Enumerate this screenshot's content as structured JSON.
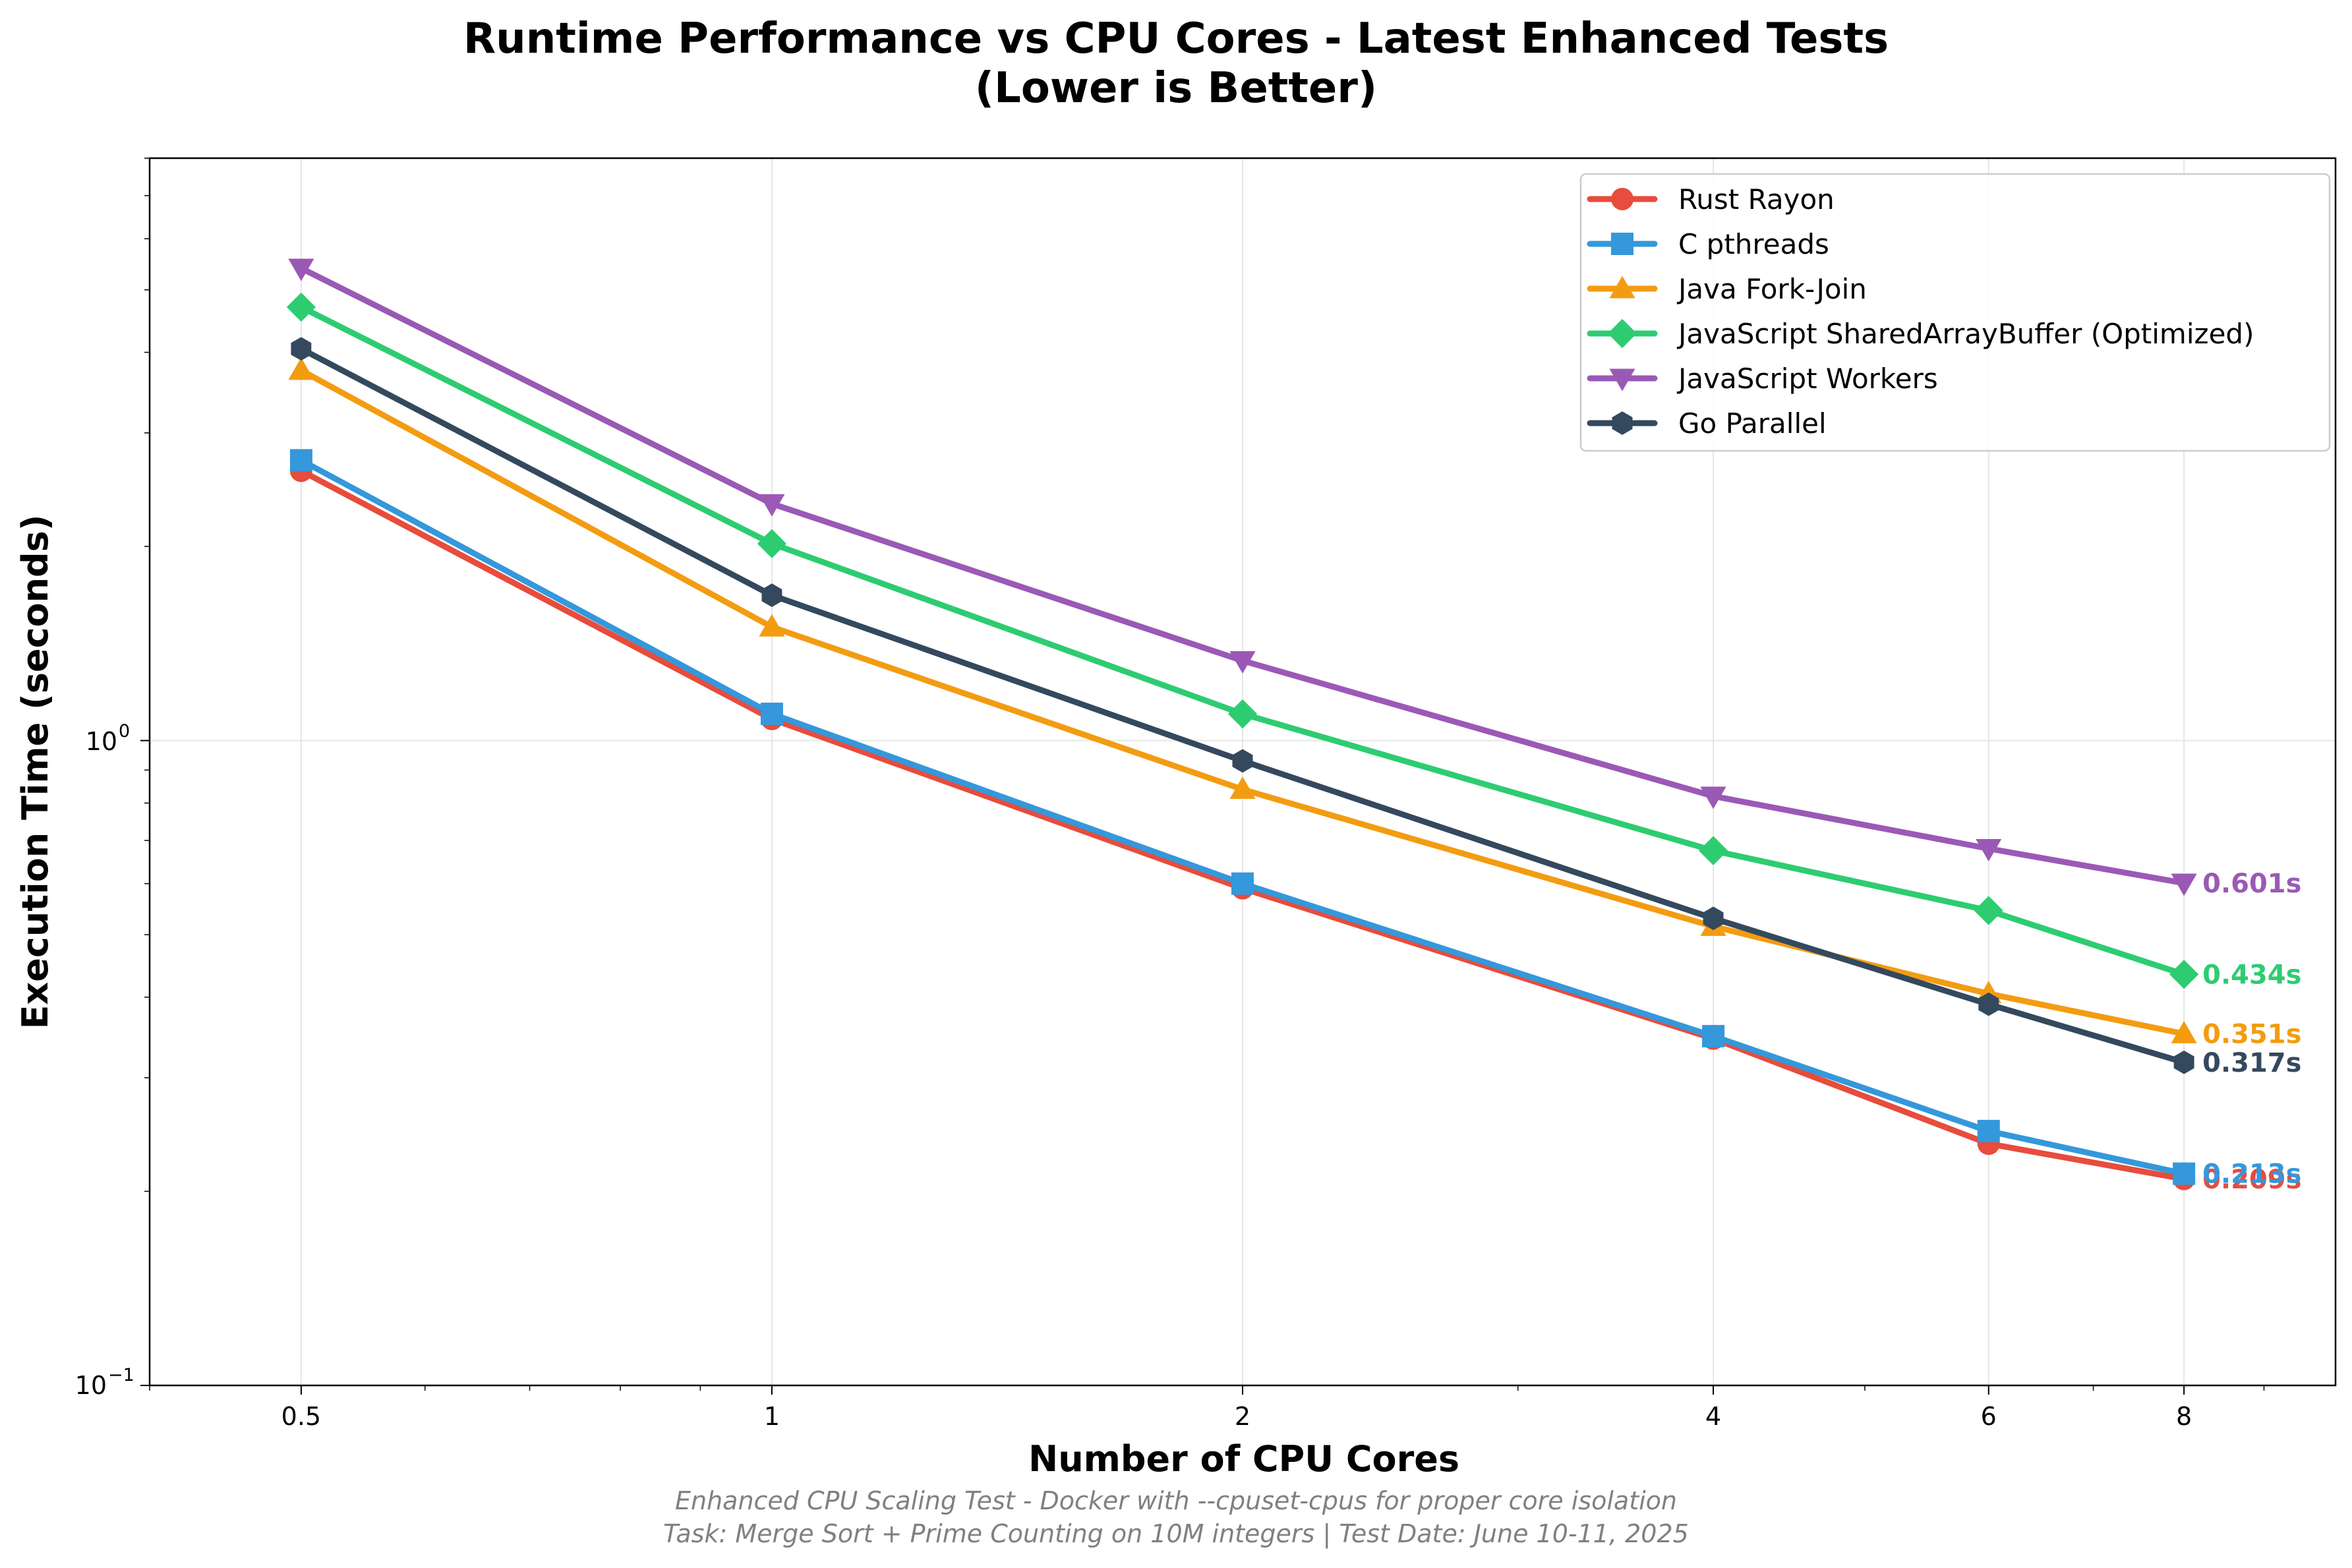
{
  "chart_data": {
    "type": "line",
    "title_lines": [
      "Runtime Performance vs CPU Cores - Latest Enhanced Tests",
      "(Lower is Better)"
    ],
    "xlabel": "Number of CPU Cores",
    "ylabel": "Execution Time (seconds)",
    "x_scale": "log",
    "y_scale": "log",
    "x": [
      0.5,
      1,
      2,
      4,
      6,
      8
    ],
    "x_tick_labels": [
      "0.5",
      "1",
      "2",
      "4",
      "6",
      "8"
    ],
    "xlim": [
      0.4,
      10
    ],
    "ylim": [
      0.1,
      8
    ],
    "y_tick_labels": [
      {
        "value": 1,
        "base": "10",
        "exp": "0"
      },
      {
        "value": 0.1,
        "base": "10",
        "exp": "−1"
      }
    ],
    "grid": true,
    "legend_position": "upper right",
    "series": [
      {
        "name": "Rust Rayon",
        "color": "#e74c3c",
        "marker": "circle",
        "values": [
          2.62,
          1.08,
          0.59,
          0.345,
          0.237,
          0.209
        ],
        "end_label": "0.209s"
      },
      {
        "name": "C pthreads",
        "color": "#3498db",
        "marker": "square",
        "values": [
          2.72,
          1.1,
          0.6,
          0.348,
          0.248,
          0.213
        ],
        "end_label": "0.213s"
      },
      {
        "name": "Java Fork-Join",
        "color": "#f39c12",
        "marker": "triangle-up",
        "values": [
          3.75,
          1.5,
          0.84,
          0.515,
          0.405,
          0.351
        ],
        "end_label": "0.351s"
      },
      {
        "name": "JavaScript SharedArrayBuffer (Optimized)",
        "color": "#2ecc71",
        "marker": "diamond",
        "values": [
          4.7,
          2.02,
          1.1,
          0.675,
          0.545,
          0.434
        ],
        "end_label": "0.434s"
      },
      {
        "name": "JavaScript Workers",
        "color": "#9b59b6",
        "marker": "triangle-down",
        "values": [
          5.4,
          2.33,
          1.33,
          0.82,
          0.68,
          0.601
        ],
        "end_label": "0.601s"
      },
      {
        "name": "Go Parallel",
        "color": "#34495e",
        "marker": "hexagon",
        "values": [
          4.05,
          1.68,
          0.93,
          0.53,
          0.39,
          0.317
        ],
        "end_label": "0.317s"
      }
    ],
    "footnotes": [
      "Enhanced CPU Scaling Test - Docker with --cpuset-cpus for proper core isolation",
      "Task: Merge Sort + Prime Counting on 10M integers | Test Date: June 10-11, 2025"
    ]
  }
}
